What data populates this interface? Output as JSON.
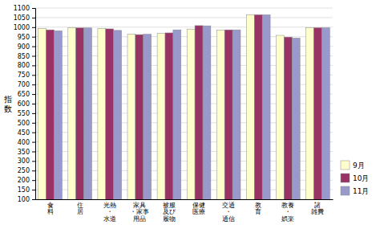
{
  "chart_data": {
    "type": "bar",
    "ylabel": "指\n数",
    "categories": [
      "食\n料",
      "住\n居",
      "光熱\n・\n水道",
      "家具\n・家事\n用品",
      "被服\n及び\n履物",
      "保健\n医療",
      "交通\n・\n通信",
      "教\n育",
      "教養\n・\n娯楽",
      "諸\n雑費"
    ],
    "series": [
      {
        "name": "9月",
        "color": "#FFFFCC",
        "values": [
          993,
          997,
          993,
          963,
          967,
          990,
          985,
          1065,
          957,
          997
        ]
      },
      {
        "name": "10月",
        "color": "#993366",
        "values": [
          986,
          996,
          991,
          961,
          970,
          1008,
          986,
          1065,
          948,
          997
        ]
      },
      {
        "name": "11月",
        "color": "#9999CC",
        "values": [
          981,
          996,
          983,
          963,
          986,
          1007,
          986,
          1065,
          943,
          997
        ]
      }
    ],
    "ylim": [
      100,
      1100
    ],
    "yticks": [
      100,
      150,
      200,
      250,
      300,
      350,
      400,
      450,
      500,
      550,
      600,
      650,
      700,
      750,
      800,
      850,
      900,
      950,
      1000,
      1050,
      1100
    ],
    "grid": true,
    "legend": "right"
  }
}
